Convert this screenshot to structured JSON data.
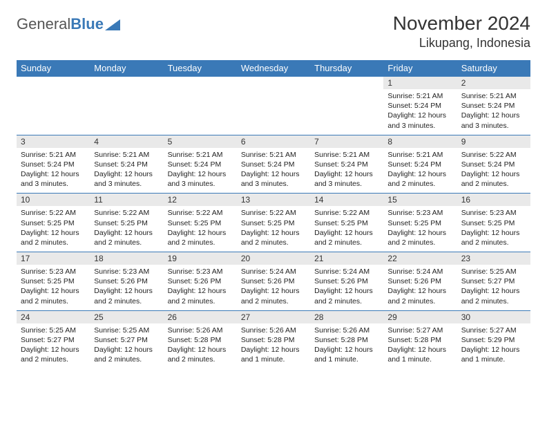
{
  "logo": {
    "text1": "General",
    "text2": "Blue"
  },
  "header": {
    "month_title": "November 2024",
    "location": "Likupang, Indonesia"
  },
  "colors": {
    "brand_blue": "#3a79b7",
    "header_row_bg": "#3a79b7",
    "header_row_fg": "#ffffff",
    "daynum_bg": "#e9e9e9",
    "row_border": "#3a79b7"
  },
  "day_labels": [
    "Sunday",
    "Monday",
    "Tuesday",
    "Wednesday",
    "Thursday",
    "Friday",
    "Saturday"
  ],
  "labels": {
    "sunrise_prefix": "Sunrise: ",
    "sunset_prefix": "Sunset: ",
    "daylight_prefix": "Daylight: "
  },
  "weeks": [
    [
      {
        "empty": true
      },
      {
        "empty": true
      },
      {
        "empty": true
      },
      {
        "empty": true
      },
      {
        "empty": true
      },
      {
        "n": "1",
        "sunrise": "5:21 AM",
        "sunset": "5:24 PM",
        "daylight": "12 hours and 3 minutes."
      },
      {
        "n": "2",
        "sunrise": "5:21 AM",
        "sunset": "5:24 PM",
        "daylight": "12 hours and 3 minutes."
      }
    ],
    [
      {
        "n": "3",
        "sunrise": "5:21 AM",
        "sunset": "5:24 PM",
        "daylight": "12 hours and 3 minutes."
      },
      {
        "n": "4",
        "sunrise": "5:21 AM",
        "sunset": "5:24 PM",
        "daylight": "12 hours and 3 minutes."
      },
      {
        "n": "5",
        "sunrise": "5:21 AM",
        "sunset": "5:24 PM",
        "daylight": "12 hours and 3 minutes."
      },
      {
        "n": "6",
        "sunrise": "5:21 AM",
        "sunset": "5:24 PM",
        "daylight": "12 hours and 3 minutes."
      },
      {
        "n": "7",
        "sunrise": "5:21 AM",
        "sunset": "5:24 PM",
        "daylight": "12 hours and 3 minutes."
      },
      {
        "n": "8",
        "sunrise": "5:21 AM",
        "sunset": "5:24 PM",
        "daylight": "12 hours and 2 minutes."
      },
      {
        "n": "9",
        "sunrise": "5:22 AM",
        "sunset": "5:24 PM",
        "daylight": "12 hours and 2 minutes."
      }
    ],
    [
      {
        "n": "10",
        "sunrise": "5:22 AM",
        "sunset": "5:25 PM",
        "daylight": "12 hours and 2 minutes."
      },
      {
        "n": "11",
        "sunrise": "5:22 AM",
        "sunset": "5:25 PM",
        "daylight": "12 hours and 2 minutes."
      },
      {
        "n": "12",
        "sunrise": "5:22 AM",
        "sunset": "5:25 PM",
        "daylight": "12 hours and 2 minutes."
      },
      {
        "n": "13",
        "sunrise": "5:22 AM",
        "sunset": "5:25 PM",
        "daylight": "12 hours and 2 minutes."
      },
      {
        "n": "14",
        "sunrise": "5:22 AM",
        "sunset": "5:25 PM",
        "daylight": "12 hours and 2 minutes."
      },
      {
        "n": "15",
        "sunrise": "5:23 AM",
        "sunset": "5:25 PM",
        "daylight": "12 hours and 2 minutes."
      },
      {
        "n": "16",
        "sunrise": "5:23 AM",
        "sunset": "5:25 PM",
        "daylight": "12 hours and 2 minutes."
      }
    ],
    [
      {
        "n": "17",
        "sunrise": "5:23 AM",
        "sunset": "5:25 PM",
        "daylight": "12 hours and 2 minutes."
      },
      {
        "n": "18",
        "sunrise": "5:23 AM",
        "sunset": "5:26 PM",
        "daylight": "12 hours and 2 minutes."
      },
      {
        "n": "19",
        "sunrise": "5:23 AM",
        "sunset": "5:26 PM",
        "daylight": "12 hours and 2 minutes."
      },
      {
        "n": "20",
        "sunrise": "5:24 AM",
        "sunset": "5:26 PM",
        "daylight": "12 hours and 2 minutes."
      },
      {
        "n": "21",
        "sunrise": "5:24 AM",
        "sunset": "5:26 PM",
        "daylight": "12 hours and 2 minutes."
      },
      {
        "n": "22",
        "sunrise": "5:24 AM",
        "sunset": "5:26 PM",
        "daylight": "12 hours and 2 minutes."
      },
      {
        "n": "23",
        "sunrise": "5:25 AM",
        "sunset": "5:27 PM",
        "daylight": "12 hours and 2 minutes."
      }
    ],
    [
      {
        "n": "24",
        "sunrise": "5:25 AM",
        "sunset": "5:27 PM",
        "daylight": "12 hours and 2 minutes."
      },
      {
        "n": "25",
        "sunrise": "5:25 AM",
        "sunset": "5:27 PM",
        "daylight": "12 hours and 2 minutes."
      },
      {
        "n": "26",
        "sunrise": "5:26 AM",
        "sunset": "5:28 PM",
        "daylight": "12 hours and 2 minutes."
      },
      {
        "n": "27",
        "sunrise": "5:26 AM",
        "sunset": "5:28 PM",
        "daylight": "12 hours and 1 minute."
      },
      {
        "n": "28",
        "sunrise": "5:26 AM",
        "sunset": "5:28 PM",
        "daylight": "12 hours and 1 minute."
      },
      {
        "n": "29",
        "sunrise": "5:27 AM",
        "sunset": "5:28 PM",
        "daylight": "12 hours and 1 minute."
      },
      {
        "n": "30",
        "sunrise": "5:27 AM",
        "sunset": "5:29 PM",
        "daylight": "12 hours and 1 minute."
      }
    ]
  ]
}
